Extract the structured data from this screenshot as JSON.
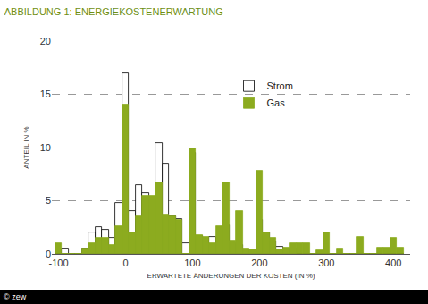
{
  "chart_data": {
    "type": "histogram",
    "title": "ABBILDUNG 1: ENERGIEKOSTENERWARTUNG",
    "x_label": "ERWARTETE ÄNDERUNGEN DER KOSTEN (IN %)",
    "y_label": "ANTEIL IN %",
    "source": "© zew",
    "bins": [
      -105,
      -95,
      -85,
      -75,
      -65,
      -55,
      -45,
      -35,
      -25,
      -15,
      -5,
      5,
      15,
      25,
      35,
      45,
      55,
      65,
      75,
      85,
      95,
      105,
      115,
      125,
      135,
      145,
      155,
      165,
      175,
      185,
      195,
      205,
      215,
      225,
      235,
      245,
      255,
      265,
      275,
      285,
      295,
      305,
      315,
      325,
      335,
      345,
      355,
      365,
      375,
      385,
      395,
      405,
      415
    ],
    "series": [
      {
        "name": "Strom",
        "color": "#ffffff",
        "values": [
          0,
          0.5,
          0,
          0,
          0.5,
          2,
          2.5,
          2.3,
          1.5,
          4.8,
          17,
          4,
          6.5,
          5.7,
          4.5,
          10.4,
          8.5,
          3.5,
          3.3,
          1,
          9.5,
          1.7,
          1.5,
          1.6,
          1,
          2.7,
          1,
          0.8,
          0.3,
          0.3,
          3.2,
          2,
          1.2,
          0.7,
          0.3,
          0.5,
          0,
          0,
          0,
          0,
          0,
          0,
          0,
          0,
          0,
          0,
          0,
          0,
          0,
          0,
          0,
          0
        ]
      },
      {
        "name": "Gas",
        "color": "#8cab1f",
        "values": [
          1,
          0,
          0,
          0,
          0.5,
          1,
          1.5,
          1.5,
          0.8,
          2.6,
          14,
          2,
          3.5,
          5.5,
          5.5,
          6.7,
          3.7,
          3.5,
          3.2,
          0,
          9.9,
          1.8,
          1.6,
          1,
          2.6,
          6.7,
          1.3,
          4,
          0.5,
          0.4,
          7.8,
          2,
          1.5,
          0.4,
          0.6,
          1,
          1,
          1,
          0,
          0.3,
          2,
          0,
          0.5,
          0,
          0,
          1.6,
          0,
          0,
          0.6,
          0.6,
          1.5,
          0.6
        ]
      }
    ],
    "xlim": [
      -110,
      425
    ],
    "xticks": [
      -100,
      0,
      100,
      200,
      300,
      400
    ],
    "ylim": [
      0,
      20
    ],
    "yticks": [
      0,
      5,
      10,
      15,
      20
    ],
    "grid": true,
    "legend": "upper center"
  }
}
